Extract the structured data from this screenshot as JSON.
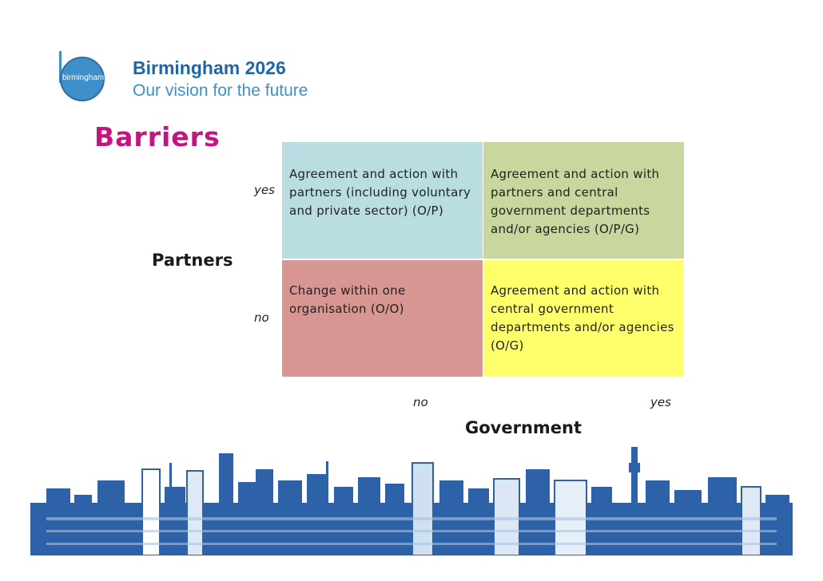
{
  "logo": {
    "text": "birmingham"
  },
  "brand": {
    "title": "Birmingham 2026",
    "subtitle": "Our vision for the future"
  },
  "slide": {
    "heading": "Barriers"
  },
  "matrix": {
    "y_axis": {
      "title": "Partners",
      "yes": "yes",
      "no": "no"
    },
    "x_axis": {
      "title": "Government",
      "no": "no",
      "yes": "yes"
    },
    "cells": {
      "partners_yes_gov_no": "Agreement and action with partners (including voluntary and private sector) (O/P)",
      "partners_yes_gov_yes": "Agreement and action with partners and central government departments and/or agencies (O/P/G)",
      "partners_no_gov_no": "Change within one organisation (O/O)",
      "partners_no_gov_yes": "Agreement and action with central government departments and/or agencies (O/G)"
    },
    "colors": {
      "partners_yes_gov_no": "#b9dde1",
      "partners_yes_gov_yes": "#c7d79d",
      "partners_no_gov_no": "#d89693",
      "partners_no_gov_yes": "#ffff6b"
    }
  },
  "colors": {
    "heading": "#c5137f",
    "brand_primary": "#1f66a8",
    "brand_secondary": "#3f8fca",
    "skyline": "#2e62a8"
  }
}
